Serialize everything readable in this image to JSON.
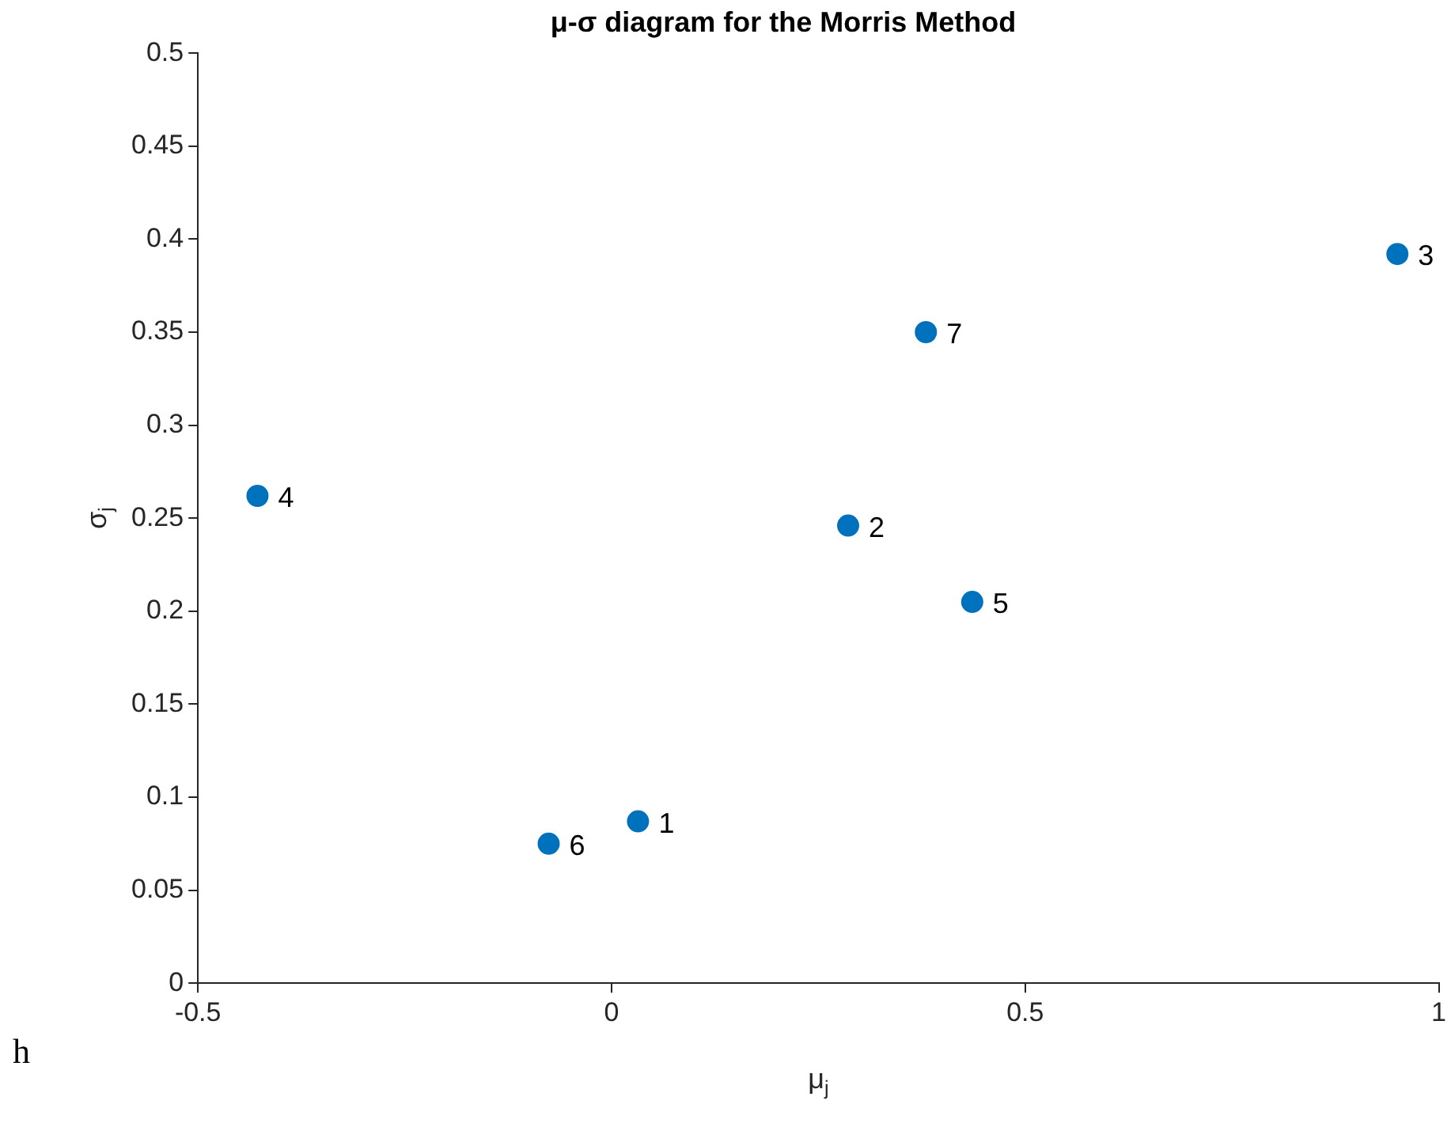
{
  "chart_data": {
    "type": "scatter",
    "title": "μ-σ diagram for the Morris Method",
    "xlabel": "μ$_{j}$",
    "ylabel": "σ$_{j}$",
    "series": [
      {
        "color": "#0072bd",
        "x": [
          0.032,
          0.286,
          0.95,
          -0.428,
          0.436,
          -0.076,
          0.38
        ],
        "values": [
          0.087,
          0.246,
          0.392,
          0.262,
          0.205,
          0.075,
          0.35
        ]
      }
    ],
    "annotations": [
      {
        "text": "1",
        "x": 0.032,
        "y": 0.087
      },
      {
        "text": "2",
        "x": 0.286,
        "y": 0.246
      },
      {
        "text": "3",
        "x": 0.95,
        "y": 0.392
      },
      {
        "text": "4",
        "x": -0.428,
        "y": 0.262
      },
      {
        "text": "5",
        "x": 0.436,
        "y": 0.205
      },
      {
        "text": "6",
        "x": -0.076,
        "y": 0.075
      },
      {
        "text": "7",
        "x": 0.38,
        "y": 0.35
      },
      "h"
    ],
    "xlim": [
      -0.5,
      1
    ],
    "xticks": [
      -0.5,
      0,
      0.5,
      1
    ],
    "ylim": [
      0,
      0.5
    ],
    "yticks": [
      0,
      0.05,
      0.1,
      0.15,
      0.2,
      0.25,
      0.3,
      0.35,
      0.4,
      0.45,
      0.5
    ],
    "grid": false,
    "legend": false,
    "marker": "circle"
  }
}
